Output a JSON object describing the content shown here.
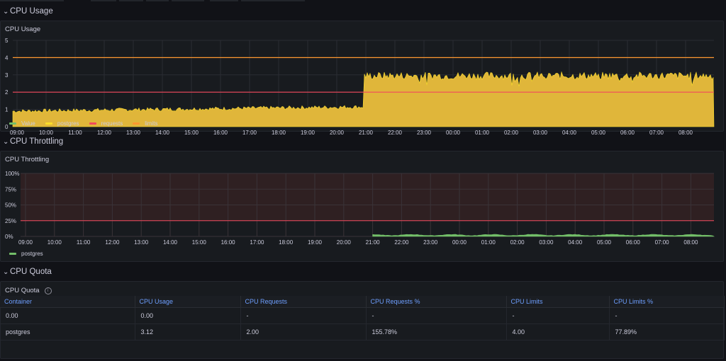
{
  "rows": {
    "cpu_usage": "CPU Usage",
    "cpu_throttling": "CPU Throttling",
    "cpu_quota": "CPU Quota"
  },
  "panels": {
    "cpu_usage": "CPU Usage",
    "cpu_throttling": "CPU Throttling",
    "cpu_quota": "CPU Quota"
  },
  "colors": {
    "background": "#111217",
    "panel": "#181b1f",
    "text": "#ccccdc",
    "link": "#6e9fff",
    "value_green": "#73bf69",
    "postgres_yellow": "#fade2a",
    "postgres_fill": "#e0b63a",
    "requests_red": "#f2495c",
    "limits_orange": "#ff9830",
    "throttle_band": "#2f2022"
  },
  "legend_usage": [
    {
      "label": "Value",
      "color": "#73bf69"
    },
    {
      "label": "postgres",
      "color": "#fade2a"
    },
    {
      "label": "requests",
      "color": "#f2495c"
    },
    {
      "label": "limits",
      "color": "#ff9830"
    }
  ],
  "legend_throttling": [
    {
      "label": "postgres",
      "color": "#73bf69"
    }
  ],
  "x_ticks": [
    "09:00",
    "10:00",
    "11:00",
    "12:00",
    "13:00",
    "14:00",
    "15:00",
    "16:00",
    "17:00",
    "18:00",
    "19:00",
    "20:00",
    "21:00",
    "22:00",
    "23:00",
    "00:00",
    "01:00",
    "02:00",
    "03:00",
    "04:00",
    "05:00",
    "06:00",
    "07:00",
    "08:00"
  ],
  "chart_data": [
    {
      "type": "area",
      "title": "CPU Usage",
      "yticks": [
        "0",
        "1",
        "2",
        "3",
        "4",
        "5"
      ],
      "ylim": [
        0,
        5
      ],
      "series": [
        {
          "name": "postgres",
          "x": [
            "09:00",
            "21:00",
            "21:00",
            "08:50"
          ],
          "segments": [
            {
              "from": "09:00",
              "to": "21:00",
              "approx": 0.95
            },
            {
              "from": "21:00",
              "to": "08:50",
              "approx": 3.0
            }
          ]
        },
        {
          "name": "requests",
          "value": 2
        },
        {
          "name": "limits",
          "value": 4
        }
      ]
    },
    {
      "type": "area",
      "title": "CPU Throttling",
      "yticks": [
        "0%",
        "25%",
        "50%",
        "75%",
        "100%"
      ],
      "ylim": [
        0,
        100
      ],
      "threshold": 25,
      "series": [
        {
          "name": "postgres",
          "segments": [
            {
              "from": "21:00",
              "to": "08:50",
              "approx": 2
            }
          ]
        }
      ]
    }
  ],
  "table": {
    "headers": [
      "Container",
      "CPU Usage",
      "CPU Requests",
      "CPU Requests %",
      "CPU Limits",
      "CPU Limits %"
    ],
    "rows": [
      [
        "0.00",
        "0.00",
        "-",
        "-",
        "-",
        "-"
      ],
      [
        "postgres",
        "3.12",
        "2.00",
        "155.78%",
        "4.00",
        "77.89%"
      ]
    ]
  }
}
